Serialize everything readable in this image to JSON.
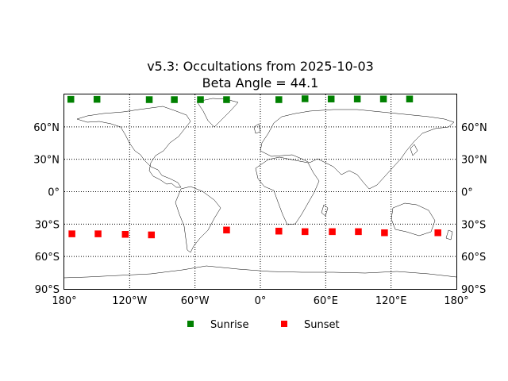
{
  "title_line1": "v5.3: Occultations from 2025-10-03",
  "title_line2": "Beta Angle = 44.1",
  "chart_data": {
    "type": "scatter",
    "projection": "equirectangular",
    "xlim": [
      -180,
      180
    ],
    "ylim": [
      -90,
      90
    ],
    "grid": true,
    "legend_position": "bottom-center",
    "x_ticks": [
      {
        "value": -180,
        "label": "180°"
      },
      {
        "value": -120,
        "label": "120°W"
      },
      {
        "value": -60,
        "label": "60°W"
      },
      {
        "value": 0,
        "label": "0°"
      },
      {
        "value": 60,
        "label": "60°E"
      },
      {
        "value": 120,
        "label": "120°E"
      },
      {
        "value": 180,
        "label": "180°"
      }
    ],
    "y_ticks": [
      {
        "value": 60,
        "label": "60°N"
      },
      {
        "value": 30,
        "label": "30°N"
      },
      {
        "value": 0,
        "label": "0°"
      },
      {
        "value": -30,
        "label": "30°S"
      },
      {
        "value": -60,
        "label": "60°S"
      },
      {
        "value": -90,
        "label": "90°S"
      }
    ],
    "series": [
      {
        "name": "Sunrise",
        "color": "#008000",
        "points": [
          [
            -174,
            85.5
          ],
          [
            -150,
            85.5
          ],
          [
            -102,
            85.2
          ],
          [
            -79,
            85.2
          ],
          [
            -55,
            85.2
          ],
          [
            -31,
            85.2
          ],
          [
            17,
            85.2
          ],
          [
            41,
            86
          ],
          [
            65,
            85.8
          ],
          [
            89,
            85.8
          ],
          [
            113,
            85.8
          ],
          [
            137,
            85.8
          ]
        ]
      },
      {
        "name": "Sunset",
        "color": "#ff0000",
        "points": [
          [
            -173,
            -39
          ],
          [
            -149,
            -39
          ],
          [
            -124,
            -39.5
          ],
          [
            -100,
            -40
          ],
          [
            -31,
            -35.5
          ],
          [
            17,
            -36.5
          ],
          [
            41,
            -37
          ],
          [
            66,
            -37
          ],
          [
            90,
            -37
          ],
          [
            114,
            -38
          ],
          [
            163,
            -38
          ]
        ]
      }
    ]
  }
}
